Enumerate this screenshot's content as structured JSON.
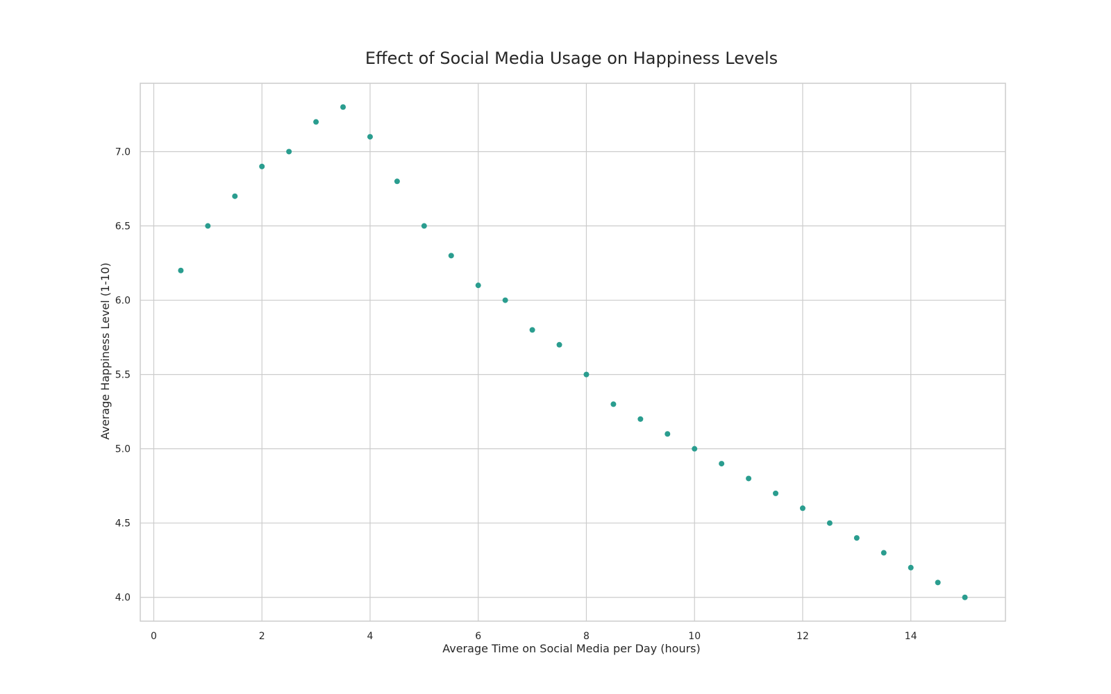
{
  "chart_data": {
    "type": "scatter",
    "title": "Effect of Social Media Usage on Happiness Levels",
    "xlabel": "Average Time on Social Media per Day (hours)",
    "ylabel": "Average Happiness Level (1-10)",
    "xlim": [
      -0.25,
      15.75
    ],
    "ylim": [
      3.84,
      7.46
    ],
    "xticks": [
      0,
      2,
      4,
      6,
      8,
      10,
      12,
      14
    ],
    "xtick_labels": [
      "0",
      "2",
      "4",
      "6",
      "8",
      "10",
      "12",
      "14"
    ],
    "yticks": [
      4.0,
      4.5,
      5.0,
      5.5,
      6.0,
      6.5,
      7.0
    ],
    "ytick_labels": [
      "4.0",
      "4.5",
      "5.0",
      "5.5",
      "6.0",
      "6.5",
      "7.0"
    ],
    "grid": true,
    "marker_color": "#2a9d8f",
    "x": [
      0.5,
      1,
      1.5,
      2,
      2.5,
      3,
      3.5,
      4,
      4.5,
      5,
      5.5,
      6,
      6.5,
      7,
      7.5,
      8,
      8.5,
      9,
      9.5,
      10,
      10.5,
      11,
      11.5,
      12,
      12.5,
      13,
      13.5,
      14,
      14.5,
      15
    ],
    "y": [
      6.2,
      6.5,
      6.7,
      6.9,
      7.0,
      7.2,
      7.3,
      7.1,
      6.8,
      6.5,
      6.3,
      6.1,
      6.0,
      5.8,
      5.7,
      5.5,
      5.3,
      5.2,
      5.1,
      5.0,
      4.9,
      4.8,
      4.7,
      4.6,
      4.5,
      4.4,
      4.3,
      4.2,
      4.1,
      4.0
    ]
  }
}
